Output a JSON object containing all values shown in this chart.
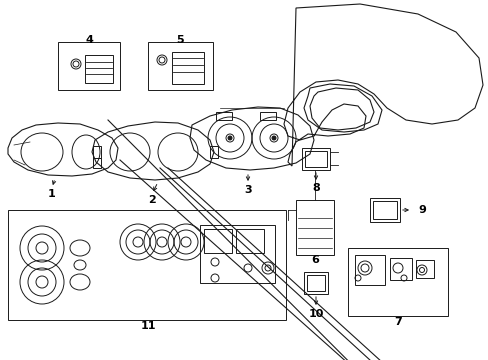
{
  "bg_color": "#ffffff",
  "line_color": "#1a1a1a",
  "lw": 0.7,
  "fig_w": 4.89,
  "fig_h": 3.6,
  "dpi": 100
}
